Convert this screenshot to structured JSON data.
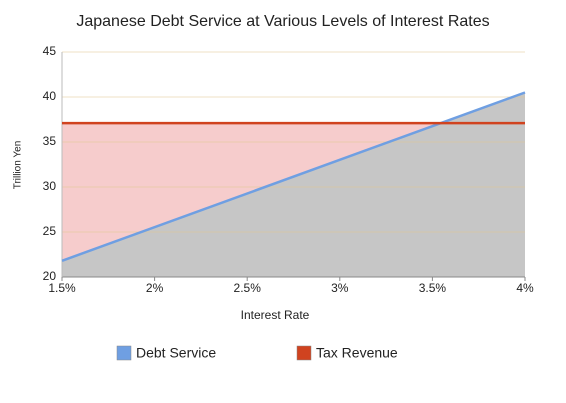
{
  "chart_data": {
    "type": "line",
    "title": "Japanese Debt Service at Various Levels of Interest Rates",
    "x_label": "Interest Rate",
    "y_label": "Trillion Yen",
    "x": [
      1.5,
      4
    ],
    "series": [
      {
        "name": "Debt Service",
        "color": "#6f9fe2",
        "values": [
          21.8,
          40.5
        ]
      },
      {
        "name": "Tax Revenue",
        "color": "#d0431f",
        "values": [
          37.1,
          37.1
        ]
      }
    ],
    "xlim": [
      1.5,
      4
    ],
    "xticks": [
      {
        "value": 1.5,
        "label": "1.5%"
      },
      {
        "value": 2,
        "label": "2%"
      },
      {
        "value": 2.5,
        "label": "2.5%"
      },
      {
        "value": 3,
        "label": "3%"
      },
      {
        "value": 3.5,
        "label": "3.5%"
      },
      {
        "value": 4,
        "label": "4%"
      }
    ],
    "ylim": [
      20,
      45
    ],
    "yticks": [
      20,
      25,
      30,
      35,
      40,
      45
    ],
    "grid": true,
    "legend": "bottom"
  }
}
